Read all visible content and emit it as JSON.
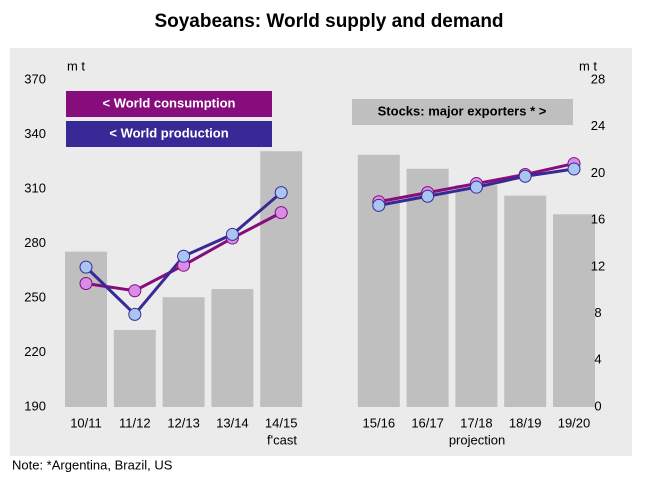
{
  "chart_data": {
    "type": "bar_line",
    "title": "Soyabeans: World supply and demand",
    "y_label": "m t",
    "y2_label": "m t",
    "annotations": [
      "f'cast",
      "projection"
    ],
    "note": "Note: *Argentina, Brazil, US",
    "categories": [
      "10/11",
      "11/12",
      "12/13",
      "13/14",
      "14/15",
      null,
      "15/16",
      "16/17",
      "17/18",
      "18/19",
      "19/20"
    ],
    "ylim": [
      190,
      370
    ],
    "yticks": [
      190,
      220,
      250,
      280,
      310,
      340,
      370
    ],
    "y2lim": [
      0,
      28
    ],
    "y2ticks": [
      0,
      4,
      8,
      12,
      16,
      20,
      24,
      28
    ],
    "series": [
      {
        "name": "Stocks: major exporters * >",
        "type": "bar",
        "axis": "y2",
        "color": "#bfbfbf",
        "values": [
          13.3,
          6.6,
          9.4,
          10.1,
          21.9,
          null,
          21.6,
          20.4,
          19.0,
          18.1,
          16.5
        ]
      },
      {
        "name": "< World consumption",
        "type": "line",
        "color": "#870c7c",
        "marker_color": "#d88ee8",
        "values": [
          258,
          254,
          268,
          283,
          297,
          null,
          303,
          308,
          313,
          318,
          324
        ]
      },
      {
        "name": "< World production",
        "type": "line",
        "color": "#382a96",
        "marker_color": "#a9c6f2",
        "values": [
          267,
          241,
          273,
          285,
          308,
          null,
          301,
          306,
          311,
          317,
          321
        ]
      }
    ]
  }
}
